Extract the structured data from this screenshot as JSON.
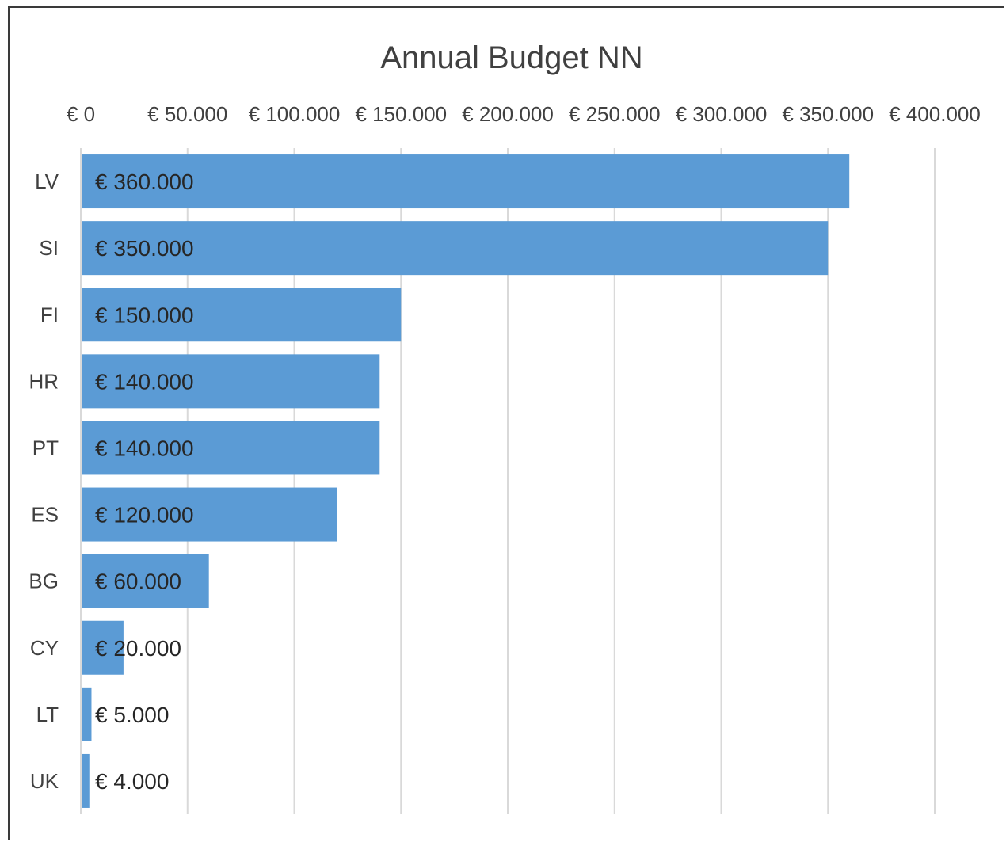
{
  "chart_data": {
    "type": "bar",
    "orientation": "horizontal",
    "title": "Annual Budget NN",
    "xlabel": "",
    "ylabel": "",
    "categories": [
      "LV",
      "SI",
      "FI",
      "HR",
      "PT",
      "ES",
      "BG",
      "CY",
      "LT",
      "UK"
    ],
    "values": [
      360000,
      350000,
      150000,
      140000,
      140000,
      120000,
      60000,
      20000,
      5000,
      4000
    ],
    "data_labels": [
      "€ 360.000",
      "€ 350.000",
      "€ 150.000",
      "€ 140.000",
      "€ 140.000",
      "€ 120.000",
      "€ 60.000",
      "€ 20.000",
      "€ 5.000",
      "€ 4.000"
    ],
    "xlim": [
      0,
      400000
    ],
    "x_ticks": [
      0,
      50000,
      100000,
      150000,
      200000,
      250000,
      300000,
      350000,
      400000
    ],
    "x_tick_labels": [
      "€ 0",
      "€ 50.000",
      "€ 100.000",
      "€ 150.000",
      "€ 200.000",
      "€ 250.000",
      "€ 300.000",
      "€ 350.000",
      "€ 400.000"
    ],
    "x_axis_position": "top",
    "grid": true,
    "legend": "none",
    "colors": {
      "bar": "#5b9bd5",
      "grid": "#d9d9d9",
      "text": "#404040"
    }
  }
}
